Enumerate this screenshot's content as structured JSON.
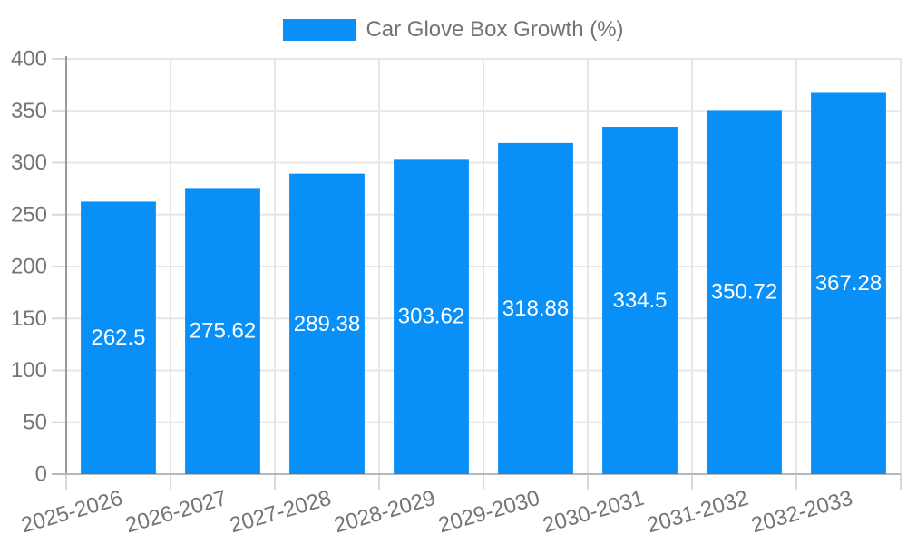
{
  "chart_data": {
    "type": "bar",
    "title": "",
    "categories": [
      "2025-2026",
      "2026-2027",
      "2027-2028",
      "2028-2029",
      "2029-2030",
      "2030-2031",
      "2031-2032",
      "2032-2033"
    ],
    "series": [
      {
        "name": "Car Glove Box Growth (%)",
        "values": [
          262.5,
          275.62,
          289.38,
          303.62,
          318.88,
          334.5,
          350.72,
          367.28
        ],
        "color": "#0890f8"
      }
    ],
    "value_labels": [
      "262.5",
      "275.62",
      "289.38",
      "303.62",
      "318.88",
      "334.5",
      "350.72",
      "367.28"
    ],
    "xlabel": "",
    "ylabel": "",
    "ylim": [
      0,
      400
    ],
    "ytick_step": 50,
    "yticks": [
      "0",
      "50",
      "100",
      "150",
      "200",
      "250",
      "300",
      "350",
      "400"
    ],
    "grid": "on",
    "legend_position": "top-center",
    "colors": {
      "bar": "#0890f8",
      "tick_label": "#757575",
      "grid_line": "#e6e6e6",
      "tick_mark": "#d9d9d9",
      "y_axis_line": "#999999",
      "x_axis_line": "#b8b8b8",
      "bar_value_label": "#ffffff"
    }
  }
}
